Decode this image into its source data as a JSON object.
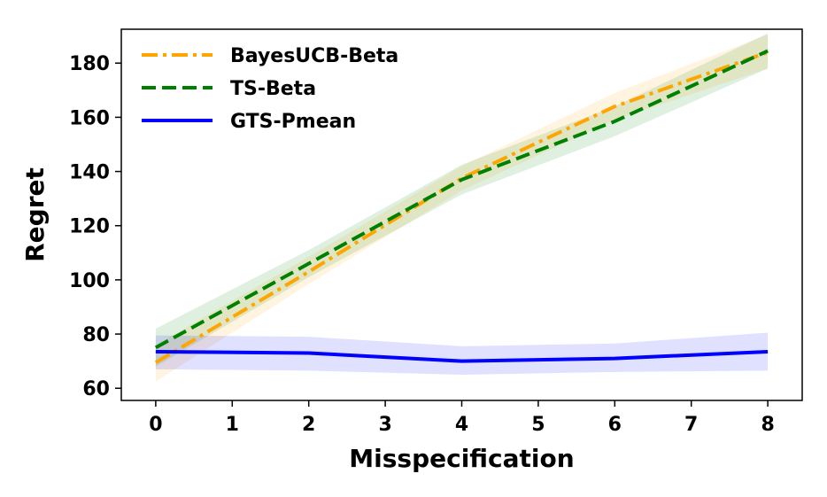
{
  "chart_data": {
    "type": "line",
    "title": "",
    "xlabel": "Misspecification",
    "ylabel": "Regret",
    "x": [
      0,
      2,
      4,
      6,
      8
    ],
    "x_ticks": [
      0,
      1,
      2,
      3,
      4,
      5,
      6,
      7,
      8
    ],
    "y_ticks": [
      60,
      80,
      100,
      120,
      140,
      160,
      180
    ],
    "xlim": [
      -0.45,
      8.45
    ],
    "ylim": [
      55.5,
      192.5
    ],
    "grid": false,
    "legend_position": "top-left",
    "series": [
      {
        "name": "BayesUCB-Beta",
        "color": "#FFA500",
        "dash": "dash-dot",
        "values": [
          69.5,
          103.0,
          137.5,
          164.0,
          184.0
        ],
        "band_lower": [
          62.5,
          98.5,
          133.0,
          159.0,
          178.0
        ],
        "band_upper": [
          76.0,
          108.5,
          142.0,
          169.0,
          190.5
        ]
      },
      {
        "name": "TS-Beta",
        "color": "#008000",
        "dash": "dashed",
        "values": [
          75.0,
          106.0,
          137.0,
          158.5,
          184.5
        ],
        "band_lower": [
          68.0,
          101.0,
          131.5,
          153.0,
          178.0
        ],
        "band_upper": [
          82.0,
          111.0,
          142.5,
          164.0,
          191.0
        ]
      },
      {
        "name": "GTS-Pmean",
        "color": "#0000FF",
        "dash": "solid",
        "values": [
          73.5,
          73.0,
          70.0,
          71.0,
          73.5
        ],
        "band_lower": [
          67.0,
          66.5,
          65.0,
          66.0,
          66.5
        ],
        "band_upper": [
          79.5,
          79.0,
          75.5,
          76.5,
          80.5
        ]
      }
    ]
  }
}
